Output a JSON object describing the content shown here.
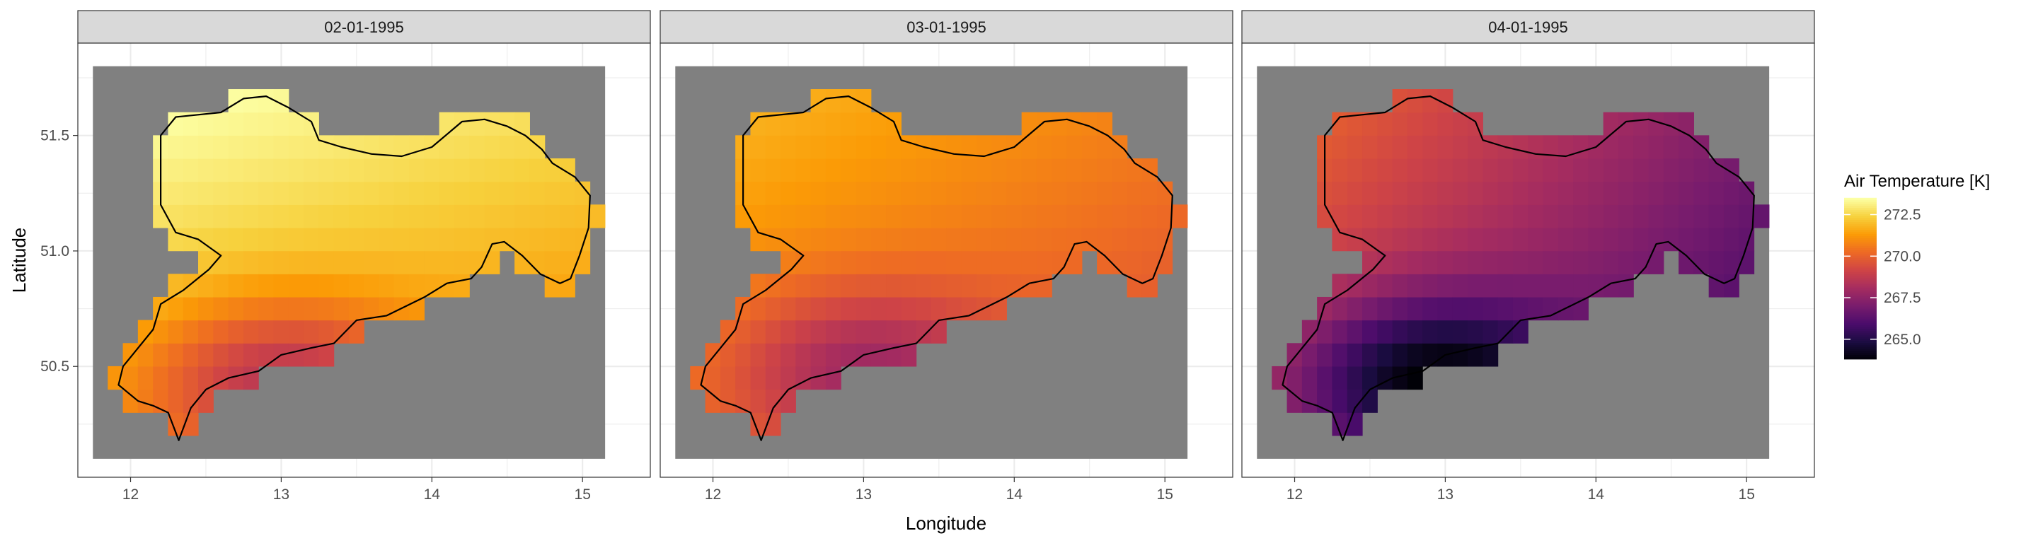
{
  "chart_data": {
    "type": "heatmap",
    "facets": [
      "02-01-1995",
      "03-01-1995",
      "04-01-1995"
    ],
    "xlabel": "Longitude",
    "ylabel": "Latitude",
    "x_ticks": [
      "12",
      "13",
      "14",
      "15"
    ],
    "y_ticks": [
      "50.5",
      "51.0",
      "51.5"
    ],
    "xlim": [
      11.65,
      15.45
    ],
    "ylim": [
      50.02,
      51.9
    ],
    "grid_extent": {
      "lon": [
        11.75,
        15.15
      ],
      "lat": [
        50.1,
        51.8
      ]
    },
    "cell_size": {
      "lon": 0.1,
      "lat": 0.1
    },
    "grid": "on",
    "background_fill": "#808080",
    "legend": {
      "title": "Air Temperature [K]",
      "ticks": [
        "272.5",
        "270.0",
        "267.5",
        "265.0"
      ],
      "range": [
        263.8,
        273.5
      ],
      "palette": "inferno",
      "placement": "right"
    },
    "fields": [
      {
        "facet": "02-01-1995",
        "base": 272.6,
        "north_gradient": 1.5,
        "east_gradient": -0.3,
        "south_cold_center": [
          13.0,
          50.45
        ],
        "south_cold_depth": 3.0
      },
      {
        "facet": "03-01-1995",
        "base": 271.0,
        "north_gradient": 1.0,
        "east_gradient": -0.4,
        "south_cold_center": [
          13.0,
          50.5
        ],
        "south_cold_depth": 2.5
      },
      {
        "facet": "04-01-1995",
        "base": 268.4,
        "north_gradient": 1.2,
        "east_gradient": -1.0,
        "south_cold_center": [
          12.9,
          50.45
        ],
        "south_cold_depth": 4.2
      }
    ],
    "region_outline": [
      [
        12.3,
        51.58
      ],
      [
        12.6,
        51.6
      ],
      [
        12.75,
        51.66
      ],
      [
        12.9,
        51.67
      ],
      [
        13.05,
        51.62
      ],
      [
        13.2,
        51.56
      ],
      [
        13.25,
        51.48
      ],
      [
        13.4,
        51.45
      ],
      [
        13.6,
        51.42
      ],
      [
        13.8,
        51.41
      ],
      [
        14.0,
        51.45
      ],
      [
        14.2,
        51.56
      ],
      [
        14.35,
        51.57
      ],
      [
        14.5,
        51.54
      ],
      [
        14.62,
        51.5
      ],
      [
        14.73,
        51.44
      ],
      [
        14.8,
        51.38
      ],
      [
        14.95,
        51.32
      ],
      [
        15.05,
        51.24
      ],
      [
        15.04,
        51.1
      ],
      [
        14.98,
        50.98
      ],
      [
        14.92,
        50.88
      ],
      [
        14.85,
        50.86
      ],
      [
        14.72,
        50.9
      ],
      [
        14.6,
        50.98
      ],
      [
        14.48,
        51.04
      ],
      [
        14.4,
        51.03
      ],
      [
        14.33,
        50.93
      ],
      [
        14.26,
        50.88
      ],
      [
        14.1,
        50.86
      ],
      [
        13.95,
        50.8
      ],
      [
        13.7,
        50.72
      ],
      [
        13.5,
        50.7
      ],
      [
        13.35,
        50.6
      ],
      [
        13.2,
        50.58
      ],
      [
        13.0,
        50.55
      ],
      [
        12.85,
        50.48
      ],
      [
        12.65,
        50.45
      ],
      [
        12.5,
        50.4
      ],
      [
        12.4,
        50.32
      ],
      [
        12.32,
        50.18
      ],
      [
        12.25,
        50.3
      ],
      [
        12.15,
        50.33
      ],
      [
        12.05,
        50.35
      ],
      [
        11.92,
        50.42
      ],
      [
        11.95,
        50.5
      ],
      [
        12.05,
        50.58
      ],
      [
        12.15,
        50.66
      ],
      [
        12.2,
        50.77
      ],
      [
        12.35,
        50.83
      ],
      [
        12.52,
        50.92
      ],
      [
        12.6,
        50.98
      ],
      [
        12.45,
        51.05
      ],
      [
        12.3,
        51.08
      ],
      [
        12.2,
        51.2
      ],
      [
        12.2,
        51.35
      ],
      [
        12.2,
        51.5
      ],
      [
        12.3,
        51.58
      ]
    ]
  }
}
